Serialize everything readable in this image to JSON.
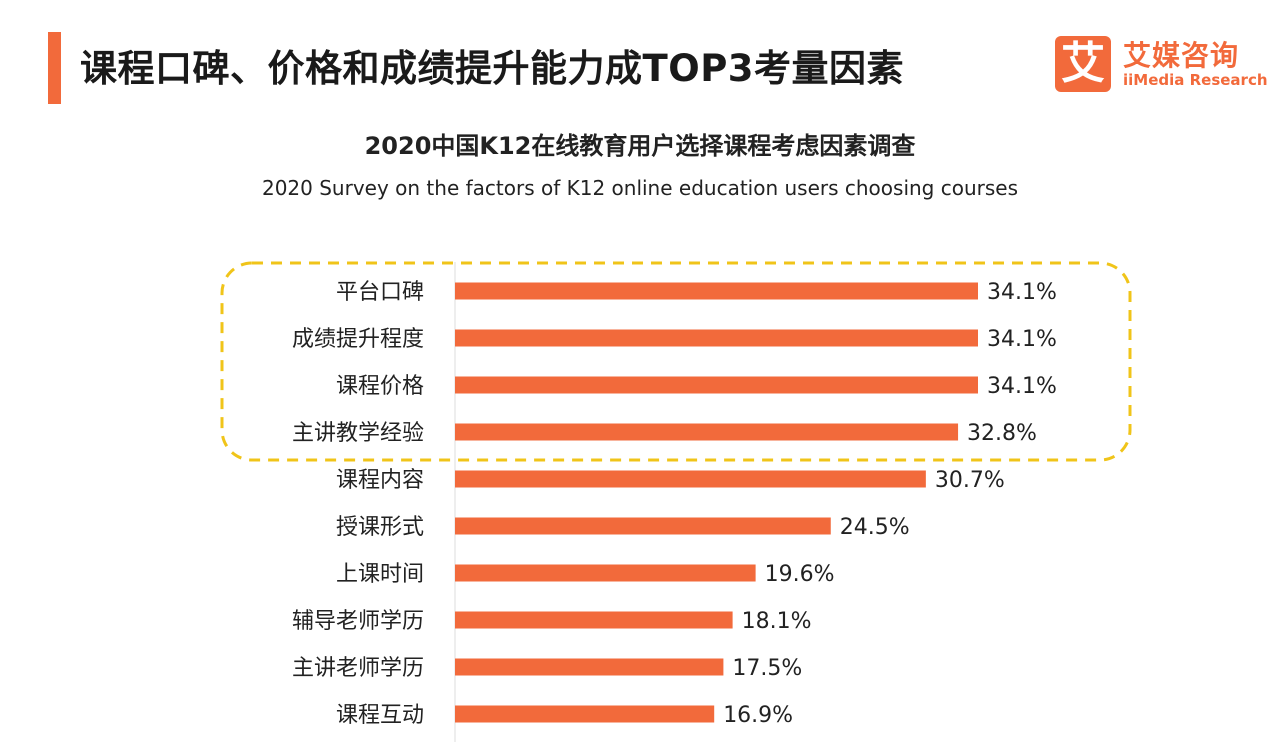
{
  "header": {
    "title": "课程口碑、价格和成绩提升能力成TOP3考量因素"
  },
  "logo": {
    "mark": "艾",
    "name_cn": "艾媒咨询",
    "name_en": "iiMedia Research"
  },
  "colors": {
    "accent": "#f26a3b",
    "bar": "#f26a3b",
    "highlight_box": "#f0c419"
  },
  "chart_data": {
    "type": "bar",
    "orientation": "horizontal",
    "title": "2020中国K12在线教育用户选择课程考虑因素调查",
    "subtitle": "2020 Survey on the factors of K12 online education users choosing courses",
    "categories": [
      "平台口碑",
      "成绩提升程度",
      "课程价格",
      "主讲教学经验",
      "课程内容",
      "授课形式",
      "上课时间",
      "辅导老师学历",
      "主讲老师学历",
      "课程互动"
    ],
    "values": [
      34.1,
      34.1,
      34.1,
      32.8,
      30.7,
      24.5,
      19.6,
      18.1,
      17.5,
      16.9
    ],
    "value_labels": [
      "34.1%",
      "34.1%",
      "34.1%",
      "32.8%",
      "30.7%",
      "24.5%",
      "19.6%",
      "18.1%",
      "17.5%",
      "16.9%"
    ],
    "unit": "%",
    "xlim": [
      0,
      34.1
    ],
    "grid": false,
    "legend": "none",
    "highlighted_categories": [
      "平台口碑",
      "成绩提升程度",
      "课程价格",
      "主讲教学经验"
    ]
  }
}
